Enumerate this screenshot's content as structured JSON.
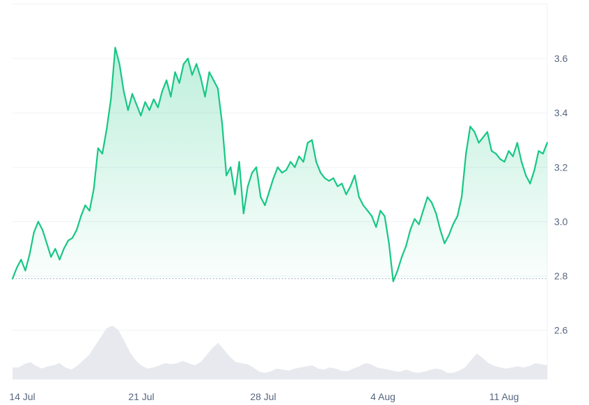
{
  "chart_data": {
    "type": "line",
    "title": "",
    "xlabel": "",
    "ylabel": "",
    "x_tick_labels": [
      "14 Jul",
      "21 Jul",
      "28 Jul",
      "4 Aug",
      "11 Aug"
    ],
    "y_tick_labels": [
      "2.6",
      "2.8",
      "3.0",
      "3.2",
      "3.4",
      "3.6"
    ],
    "ylim": [
      2.42,
      3.8
    ],
    "baseline": 2.79,
    "colors": {
      "up": "#16c784",
      "down": "#ea3943",
      "grid": "#eff2f5",
      "volume": "#e7e9ee"
    },
    "grid": true,
    "legend": "none",
    "series": [
      {
        "values": [
          2.79,
          2.83,
          2.86,
          2.82,
          2.88,
          2.96,
          3.0,
          2.97,
          2.92,
          2.87,
          2.9,
          2.86,
          2.9,
          2.93,
          2.94,
          2.97,
          3.02,
          3.06,
          3.04,
          3.12,
          3.27,
          3.25,
          3.34,
          3.45,
          3.64,
          3.58,
          3.48,
          3.41,
          3.47,
          3.43,
          3.39,
          3.44,
          3.41,
          3.45,
          3.42,
          3.48,
          3.52,
          3.46,
          3.55,
          3.51,
          3.58,
          3.6,
          3.54,
          3.58,
          3.53,
          3.46,
          3.55,
          3.52,
          3.49,
          3.36,
          3.17,
          3.2,
          3.1,
          3.22,
          3.03,
          3.13,
          3.18,
          3.2,
          3.09,
          3.06,
          3.11,
          3.16,
          3.2,
          3.18,
          3.19,
          3.22,
          3.2,
          3.24,
          3.22,
          3.29,
          3.3,
          3.22,
          3.18,
          3.16,
          3.15,
          3.16,
          3.13,
          3.14,
          3.1,
          3.13,
          3.17,
          3.09,
          3.06,
          3.04,
          3.02,
          2.98,
          3.04,
          3.02,
          2.92,
          2.78,
          2.82,
          2.87,
          2.91,
          2.97,
          3.01,
          2.99,
          3.04,
          3.09,
          3.07,
          3.03,
          2.97,
          2.92,
          2.95,
          2.99,
          3.02,
          3.09,
          3.25,
          3.35,
          3.33,
          3.29,
          3.31,
          3.33,
          3.26,
          3.25,
          3.23,
          3.22,
          3.26,
          3.24,
          3.29,
          3.22,
          3.17,
          3.14,
          3.19,
          3.26,
          3.25,
          3.29
        ]
      }
    ],
    "volume": [
      0.22,
      0.22,
      0.28,
      0.32,
      0.25,
      0.2,
      0.24,
      0.26,
      0.3,
      0.22,
      0.18,
      0.25,
      0.35,
      0.45,
      0.62,
      0.78,
      0.95,
      1.0,
      0.92,
      0.72,
      0.5,
      0.35,
      0.25,
      0.2,
      0.22,
      0.26,
      0.3,
      0.28,
      0.3,
      0.34,
      0.3,
      0.26,
      0.32,
      0.45,
      0.58,
      0.68,
      0.55,
      0.42,
      0.32,
      0.3,
      0.28,
      0.22,
      0.14,
      0.12,
      0.15,
      0.2,
      0.18,
      0.16,
      0.2,
      0.22,
      0.24,
      0.26,
      0.2,
      0.18,
      0.22,
      0.2,
      0.16,
      0.15,
      0.2,
      0.24,
      0.3,
      0.28,
      0.22,
      0.2,
      0.18,
      0.15,
      0.14,
      0.18,
      0.14,
      0.12,
      0.14,
      0.17,
      0.2,
      0.18,
      0.12,
      0.12,
      0.16,
      0.22,
      0.35,
      0.48,
      0.4,
      0.3,
      0.25,
      0.22,
      0.2,
      0.22,
      0.24,
      0.22,
      0.25,
      0.3,
      0.28,
      0.26
    ]
  }
}
